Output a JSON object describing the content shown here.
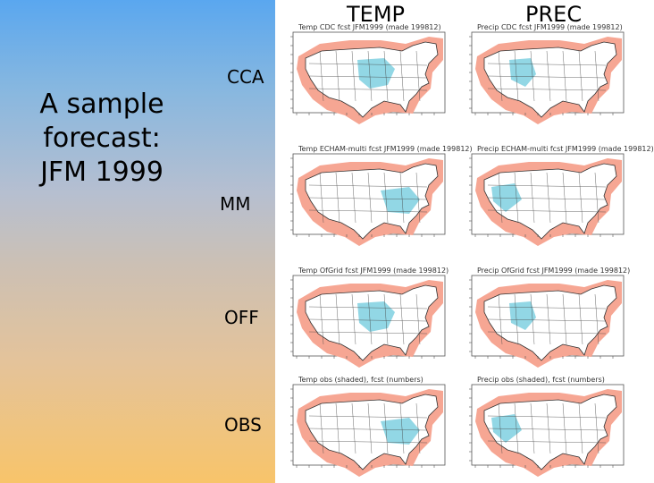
{
  "title": "A sample\nforecast:\nJFM 1999",
  "columns": [
    "TEMP",
    "PREC"
  ],
  "rows": [
    "CCA",
    "MM",
    "OFF",
    "OBS"
  ],
  "maps": [
    {
      "caption": "Temp CDC fcst JFM1999 (made 199812)"
    },
    {
      "caption": "Precip CDC fcst JFM1999 (made 199812)"
    },
    {
      "caption": "Temp ECHAM-multi fcst JFM1999 (made 199812)"
    },
    {
      "caption": "Precip ECHAM-multi fcst JFM1999 (made 199812)"
    },
    {
      "caption": "Temp OfGrid fcst JFM1999 (made 199812)"
    },
    {
      "caption": "Precip OfGrid fcst JFM1999 (made 199812)"
    },
    {
      "caption": "Temp obs (shaded), fcst (numbers)"
    },
    {
      "caption": "Precip obs (shaded), fcst (numbers)"
    }
  ],
  "colors": {
    "warm": "#f6a693",
    "cool": "#7fd0e0",
    "neutral": "#ffffff",
    "land_line": "#333333"
  }
}
